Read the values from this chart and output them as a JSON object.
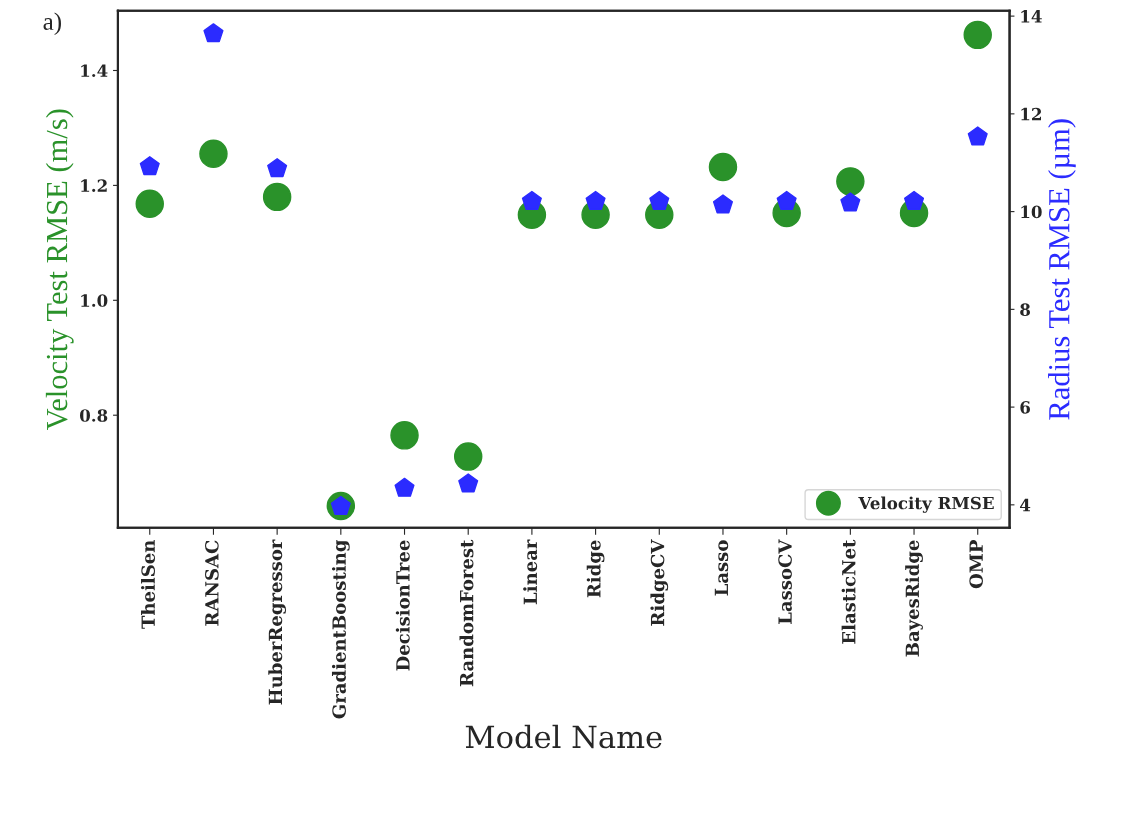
{
  "chart_data": {
    "type": "scatter",
    "xlabel": "Model Name",
    "ylabel": "Velocity Test RMSE (m/s)",
    "y2label": "Radius Test RMSE (µm)",
    "annotations": [
      "a)"
    ],
    "categories": [
      "TheilSen",
      "RANSAC",
      "HuberRegressor",
      "GradientBoosting",
      "DecisionTree",
      "RandomForest",
      "Linear",
      "Ridge",
      "RidgeCV",
      "Lasso",
      "LassoCV",
      "ElasticNet",
      "BayesRidge",
      "OMP"
    ],
    "series": [
      {
        "name": "Velocity RMSE",
        "color": "#2a922a",
        "marker": "circle",
        "values": [
          1.168,
          1.255,
          1.18,
          0.642,
          0.765,
          0.728,
          1.149,
          1.149,
          1.149,
          1.232,
          1.152,
          1.207,
          1.152,
          1.462
        ]
      },
      {
        "color": "#2b2bff",
        "axis": "y2",
        "values": [
          10.92,
          13.64,
          10.88,
          3.97,
          4.34,
          4.43,
          10.21,
          10.21,
          10.21,
          10.14,
          10.21,
          10.18,
          10.21,
          11.53
        ]
      }
    ],
    "ylim": [
      0.604,
      1.504
    ],
    "yticks": [
      {
        "value": 0.8,
        "label": "0.8"
      },
      {
        "value": 1.0,
        "label": "1.0"
      },
      {
        "value": 1.2,
        "label": "1.2"
      },
      {
        "value": 1.4,
        "label": "1.4"
      }
    ],
    "y2lim": [
      3.53,
      14.11
    ],
    "y2ticks": [
      4,
      6,
      8,
      10,
      12,
      14
    ],
    "legend": "lower right"
  }
}
